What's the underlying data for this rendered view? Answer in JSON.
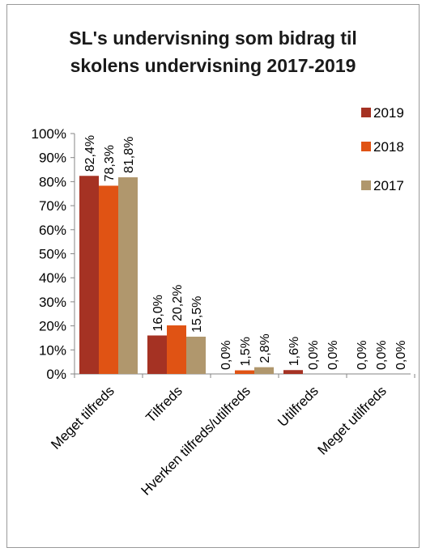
{
  "chart_data": {
    "type": "bar",
    "title_lines": [
      "SL's undervisning som bidrag til",
      "skolens undervisning 2017-2019"
    ],
    "categories": [
      "Meget tilfreds",
      "Tilfreds",
      "Hverken tilfreds/utilfreds",
      "Utilfreds",
      "Meget utilfreds"
    ],
    "series": [
      {
        "name": "2019",
        "color": "#a53223",
        "values": [
          82.4,
          16.0,
          0.0,
          1.6,
          0.0
        ],
        "labels": [
          "82,4%",
          "16,0%",
          "0,0%",
          "1,6%",
          "0,0%"
        ]
      },
      {
        "name": "2018",
        "color": "#e05314",
        "values": [
          78.3,
          20.2,
          1.5,
          0.0,
          0.0
        ],
        "labels": [
          "78,3%",
          "20,2%",
          "1,5%",
          "0,0%",
          "0,0%"
        ]
      },
      {
        "name": "2017",
        "color": "#b0976d",
        "values": [
          81.8,
          15.5,
          2.8,
          0.0,
          0.0
        ],
        "labels": [
          "81,8%",
          "15,5%",
          "2,8%",
          "0,0%",
          "0,0%"
        ]
      }
    ],
    "yticks": [
      "0%",
      "10%",
      "20%",
      "30%",
      "40%",
      "50%",
      "60%",
      "70%",
      "80%",
      "90%",
      "100%"
    ],
    "ylim": [
      0,
      100
    ],
    "grid": false,
    "legend_position": "top-right"
  }
}
